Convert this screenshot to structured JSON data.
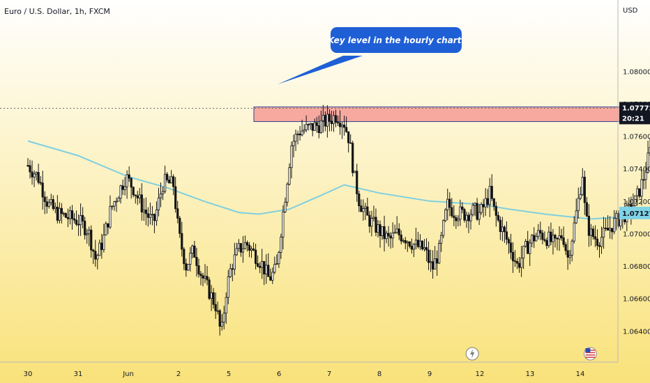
{
  "title": "Euro / U.S. Dollar, 1h, FXCM",
  "currency": "USD",
  "annotation": "Key level in the hourly chart.",
  "colors": {
    "bg_top": "#ffffff",
    "bg_bottom": "#f9e27a",
    "candle": "#141414",
    "ma": "#7fcfe0",
    "zone_fill": "#f7a9a0",
    "zone_border": "#2f3f8f",
    "callout": "#1f5fd6",
    "arrow": "#8b3a2e",
    "price_tag": "#131722",
    "ma_tag": "#7fd3e6",
    "grid_line": "#6b6b6b"
  },
  "chart_data": {
    "type": "candlestick",
    "title": "Euro / U.S. Dollar, 1h, FXCM",
    "ylabel": "USD",
    "ylim": [
      1.0629,
      1.0828
    ],
    "y_ticks": [
      "1.08000",
      "1.07800",
      "1.07600",
      "1.07400",
      "1.07200",
      "1.07000",
      "1.06800",
      "1.06600",
      "1.06400"
    ],
    "x_ticks": [
      "30",
      "31",
      "Jun",
      "2",
      "5",
      "6",
      "7",
      "8",
      "9",
      "12",
      "13",
      "14"
    ],
    "last_price": "1.07772",
    "countdown": "20:21",
    "ma_value": "1.07127",
    "price_series": [
      [
        0,
        1.0742
      ],
      [
        0.2,
        1.0735
      ],
      [
        0.4,
        1.0718
      ],
      [
        0.6,
        1.0712
      ],
      [
        0.8,
        1.071
      ],
      [
        1.0,
        1.0708
      ],
      [
        1.2,
        1.0702
      ],
      [
        1.35,
        1.0684
      ],
      [
        1.5,
        1.0696
      ],
      [
        1.65,
        1.0715
      ],
      [
        1.8,
        1.0725
      ],
      [
        1.95,
        1.0735
      ],
      [
        2.1,
        1.0728
      ],
      [
        2.3,
        1.0715
      ],
      [
        2.5,
        1.0706
      ],
      [
        2.7,
        1.0732
      ],
      [
        2.9,
        1.073
      ],
      [
        3.0,
        1.07
      ],
      [
        3.15,
        1.068
      ],
      [
        3.3,
        1.069
      ],
      [
        3.45,
        1.0675
      ],
      [
        3.6,
        1.0665
      ],
      [
        3.75,
        1.0655
      ],
      [
        3.85,
        1.0637
      ],
      [
        3.95,
        1.0665
      ],
      [
        4.05,
        1.068
      ],
      [
        4.2,
        1.069
      ],
      [
        4.35,
        1.0694
      ],
      [
        4.5,
        1.0688
      ],
      [
        4.65,
        1.0682
      ],
      [
        4.8,
        1.0672
      ],
      [
        4.95,
        1.0678
      ],
      [
        5.05,
        1.0705
      ],
      [
        5.15,
        1.073
      ],
      [
        5.25,
        1.0755
      ],
      [
        5.4,
        1.0763
      ],
      [
        5.6,
        1.0765
      ],
      [
        5.8,
        1.0767
      ],
      [
        6.0,
        1.077
      ],
      [
        6.15,
        1.0773
      ],
      [
        6.3,
        1.0768
      ],
      [
        6.4,
        1.0758
      ],
      [
        6.5,
        1.0735
      ],
      [
        6.6,
        1.072
      ],
      [
        6.75,
        1.071
      ],
      [
        6.9,
        1.0705
      ],
      [
        7.05,
        1.07
      ],
      [
        7.2,
        1.0696
      ],
      [
        7.35,
        1.07
      ],
      [
        7.5,
        1.0698
      ],
      [
        7.7,
        1.0693
      ],
      [
        7.9,
        1.069
      ],
      [
        8.05,
        1.0678
      ],
      [
        8.2,
        1.069
      ],
      [
        8.35,
        1.0718
      ],
      [
        8.5,
        1.0713
      ],
      [
        8.7,
        1.0712
      ],
      [
        8.9,
        1.0714
      ],
      [
        9.0,
        1.0712
      ],
      [
        9.1,
        1.0718
      ],
      [
        9.2,
        1.0725
      ],
      [
        9.3,
        1.0712
      ],
      [
        9.45,
        1.0702
      ],
      [
        9.6,
        1.0692
      ],
      [
        9.75,
        1.068
      ],
      [
        9.9,
        1.069
      ],
      [
        10.05,
        1.0697
      ],
      [
        10.2,
        1.07
      ],
      [
        10.35,
        1.0697
      ],
      [
        10.5,
        1.0693
      ],
      [
        10.65,
        1.07
      ],
      [
        10.75,
        1.0685
      ],
      [
        10.85,
        1.07
      ],
      [
        10.95,
        1.0718
      ],
      [
        11.05,
        1.0738
      ],
      [
        11.1,
        1.071
      ],
      [
        11.2,
        1.07
      ],
      [
        11.35,
        1.0696
      ],
      [
        11.5,
        1.07
      ],
      [
        11.65,
        1.0706
      ],
      [
        11.8,
        1.071
      ],
      [
        11.95,
        1.0713
      ],
      [
        12.1,
        1.072
      ],
      [
        12.25,
        1.0733
      ],
      [
        12.4,
        1.0752
      ],
      [
        12.5,
        1.0768
      ],
      [
        12.6,
        1.0776
      ],
      [
        12.7,
        1.0778
      ],
      [
        12.75,
        1.07772
      ]
    ],
    "ma_series": [
      [
        0,
        1.0757
      ],
      [
        1,
        1.0748
      ],
      [
        2,
        1.0735
      ],
      [
        2.8,
        1.0728
      ],
      [
        3.5,
        1.072
      ],
      [
        4.2,
        1.0713
      ],
      [
        4.6,
        1.0712
      ],
      [
        5.2,
        1.0715
      ],
      [
        5.8,
        1.0723
      ],
      [
        6.3,
        1.073
      ],
      [
        7.0,
        1.0725
      ],
      [
        8.0,
        1.072
      ],
      [
        9.0,
        1.0718
      ],
      [
        9.6,
        1.0715
      ],
      [
        10.3,
        1.0712
      ],
      [
        11.2,
        1.0709
      ],
      [
        11.7,
        1.071
      ],
      [
        12.2,
        1.0713
      ],
      [
        12.6,
        1.0715
      ],
      [
        12.75,
        1.07127
      ]
    ],
    "resistance_zone": {
      "x_range": [
        4.5,
        13.55
      ],
      "y_range": [
        1.0769,
        1.0778
      ]
    },
    "projection_arrow": {
      "from": [
        12.85,
        1.0777
      ],
      "to": [
        13.35,
        1.0714
      ]
    }
  }
}
